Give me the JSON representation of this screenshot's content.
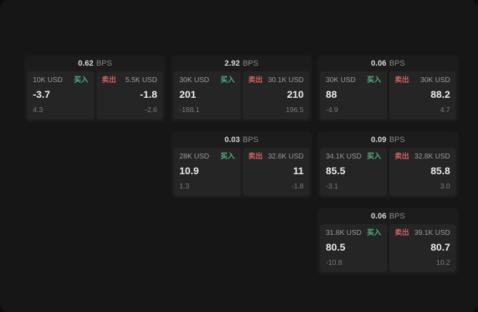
{
  "labels": {
    "buy": "买入",
    "sell": "卖出",
    "bps": "BPS"
  },
  "colors": {
    "background": "#161616",
    "card": "#1c1c1c",
    "panel": "#252525",
    "buy_green": "#4db380",
    "sell_red": "#d45f5f"
  },
  "cards": [
    {
      "bps": "0.62",
      "buy": {
        "amount": "10K USD",
        "price": "-3.7",
        "delta": "4.3"
      },
      "sell": {
        "amount": "5.5K USD",
        "price": "-1.8",
        "delta": "-2.6"
      }
    },
    {
      "bps": "2.92",
      "buy": {
        "amount": "30K USD",
        "price": "201",
        "delta": "-188.1"
      },
      "sell": {
        "amount": "30.1K USD",
        "price": "210",
        "delta": "196.5"
      }
    },
    {
      "bps": "0.06",
      "buy": {
        "amount": "30K USD",
        "price": "88",
        "delta": "-4.9"
      },
      "sell": {
        "amount": "30K USD",
        "price": "88.2",
        "delta": "4.7"
      }
    },
    {
      "bps": "0.03",
      "buy": {
        "amount": "28K USD",
        "price": "10.9",
        "delta": "1.3"
      },
      "sell": {
        "amount": "32.6K USD",
        "price": "11",
        "delta": "-1.8"
      }
    },
    {
      "bps": "0.09",
      "buy": {
        "amount": "34.1K USD",
        "price": "85.5",
        "delta": "-3.1"
      },
      "sell": {
        "amount": "32.8K USD",
        "price": "85.8",
        "delta": "3.0"
      }
    },
    {
      "bps": "0.06",
      "buy": {
        "amount": "31.8K USD",
        "price": "80.5",
        "delta": "-10.8"
      },
      "sell": {
        "amount": "39.1K USD",
        "price": "80.7",
        "delta": "10.2"
      }
    }
  ]
}
